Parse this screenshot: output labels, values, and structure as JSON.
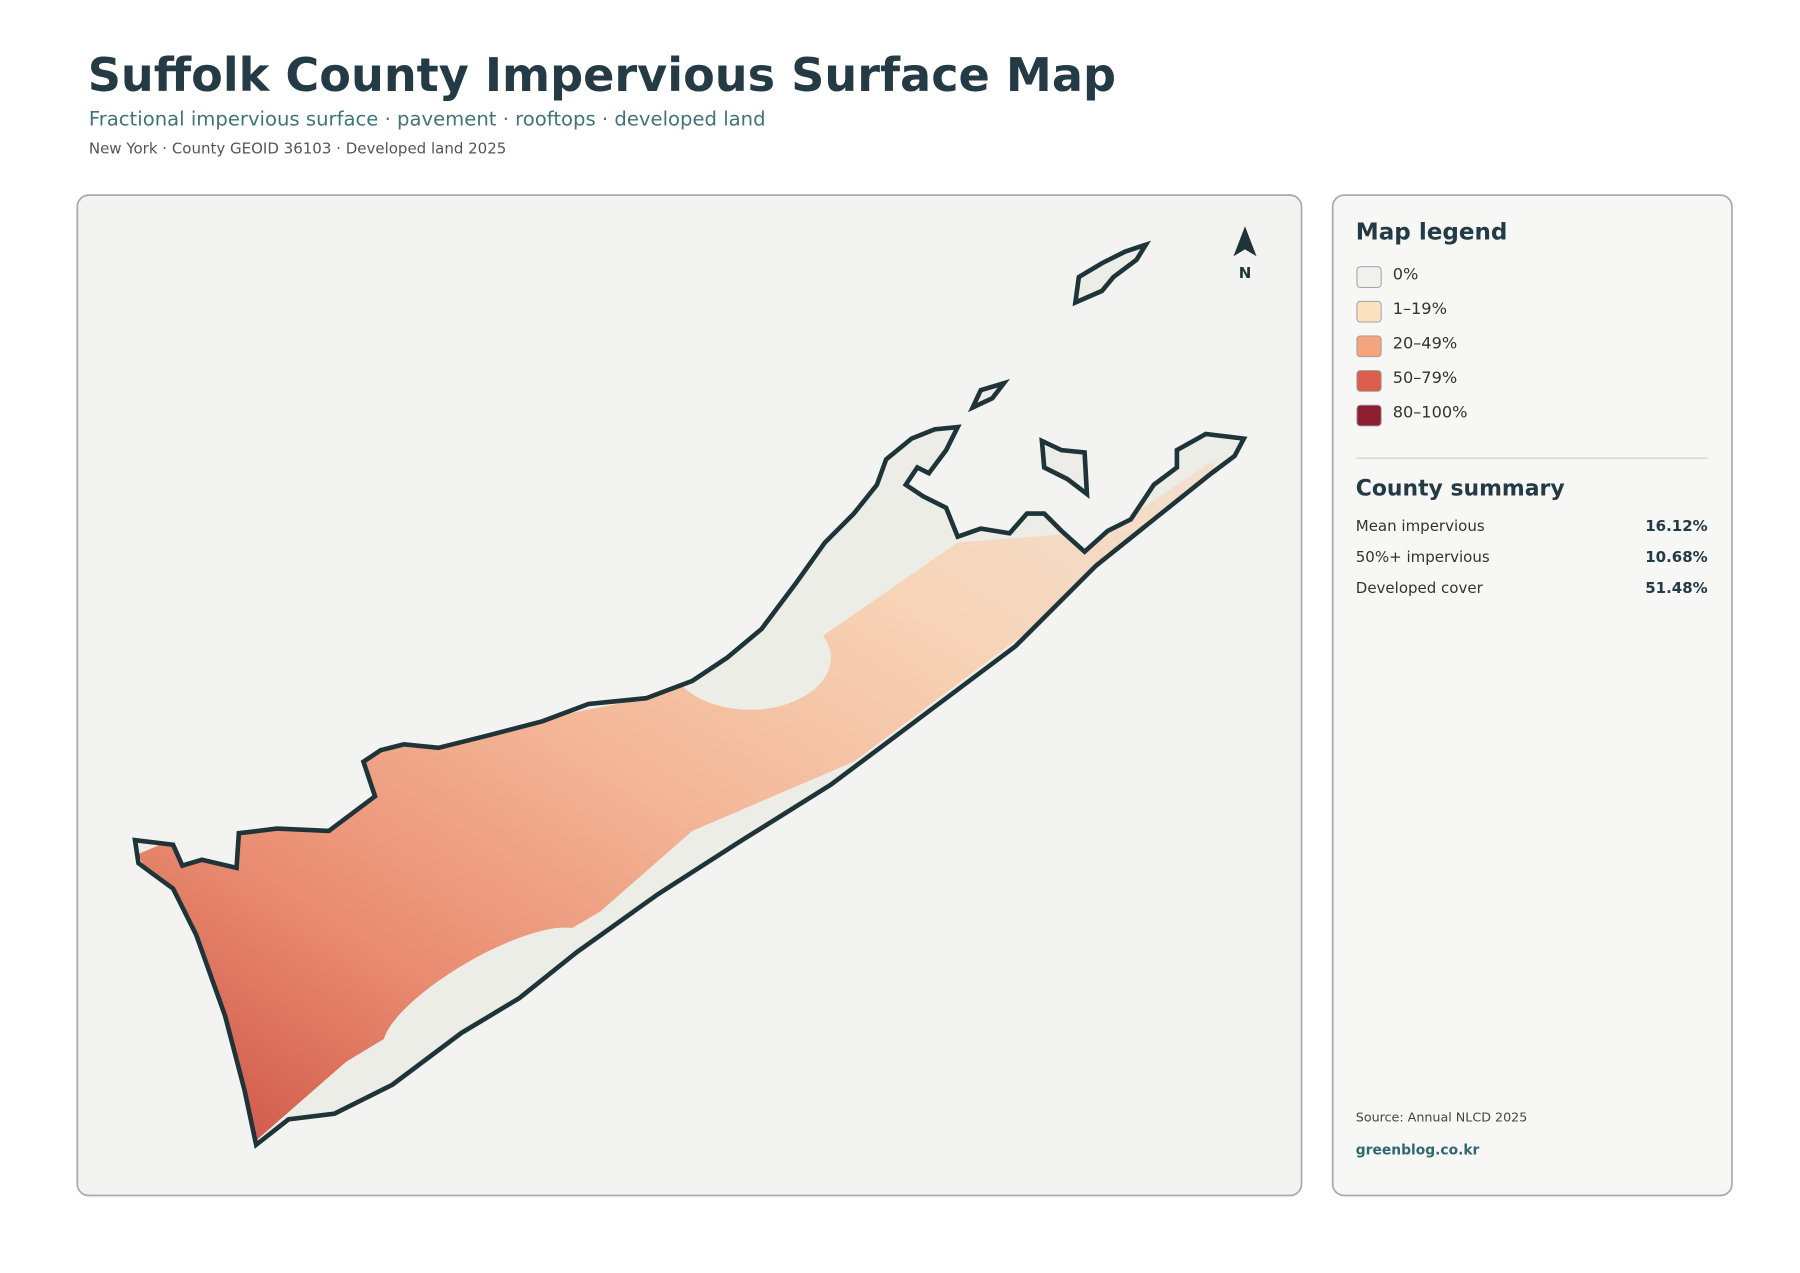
{
  "header": {
    "title": "Suffolk County Impervious Surface Map",
    "subtitle": "Fractional impervious surface · pavement · rooftops · developed land",
    "meta": "New York · County GEOID 36103 · Developed land 2025"
  },
  "map": {
    "north": "N"
  },
  "legend": {
    "title": "Map legend",
    "items": [
      {
        "label": "0%",
        "color": "#f0f0ec"
      },
      {
        "label": "1–19%",
        "color": "#fde2bf"
      },
      {
        "label": "20–49%",
        "color": "#f4a57e"
      },
      {
        "label": "50–79%",
        "color": "#dd5e4d"
      },
      {
        "label": "80–100%",
        "color": "#8e1f33"
      }
    ]
  },
  "summary": {
    "title": "County summary",
    "rows": [
      [
        "Mean impervious",
        "16.12%"
      ],
      [
        "50%+ impervious",
        "10.68%"
      ],
      [
        "Developed cover",
        "51.48%"
      ]
    ]
  },
  "footer": {
    "source": "Source: Annual NLCD 2025",
    "site": "greenblog.co.kr"
  }
}
